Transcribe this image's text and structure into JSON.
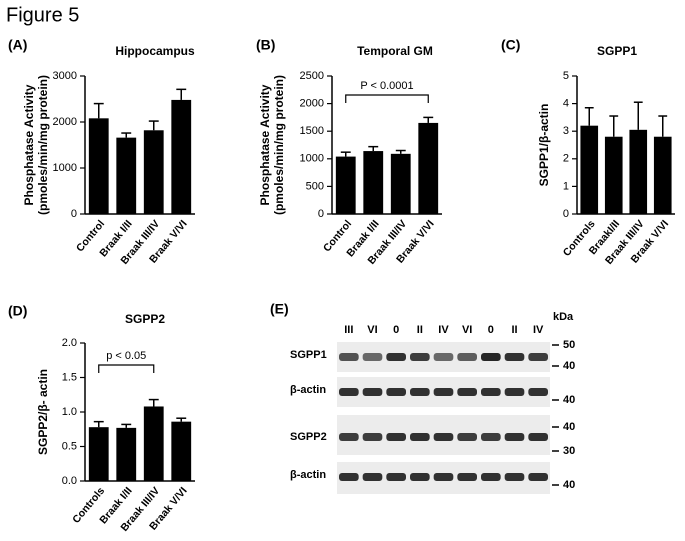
{
  "title": "Figure 5",
  "chart_data": [
    {
      "type": "bar",
      "panel": "(A)",
      "title": "Hippocampus",
      "ylabel": [
        "Phosphatase Activity",
        "(pmoles/min/mg protein)"
      ],
      "categories": [
        "Control",
        "Braak I/II",
        "Braak III/IV",
        "Braak V/VI"
      ],
      "values": [
        2080,
        1660,
        1820,
        2480
      ],
      "errors": [
        320,
        100,
        200,
        230
      ],
      "color": "#000000",
      "ylim": [
        0,
        3000
      ],
      "yticks": [
        0,
        1000,
        2000,
        3000
      ]
    },
    {
      "type": "bar",
      "panel": "(B)",
      "title": "Temporal GM",
      "ylabel": [
        "Phosphatase Activity",
        "(pmoles/min/mg protein)"
      ],
      "categories": [
        "Control",
        "Braak I/II",
        "Braak III/IV",
        "Braak V/VI"
      ],
      "values": [
        1040,
        1140,
        1090,
        1650
      ],
      "errors": [
        80,
        80,
        60,
        100
      ],
      "color": "#000000",
      "ylim": [
        0,
        2500
      ],
      "yticks": [
        0,
        500,
        1000,
        1500,
        2000,
        2500
      ],
      "annotation": "P < 0.0001"
    },
    {
      "type": "bar",
      "panel": "(C)",
      "title": "SGPP1",
      "ylabel": [
        "SGPP1/β-actin"
      ],
      "categories": [
        "Controls",
        "BraakI/II",
        "Braak III/IV",
        "Braak V/VI"
      ],
      "values": [
        3.2,
        2.8,
        3.05,
        2.8
      ],
      "errors": [
        0.65,
        0.75,
        1.0,
        0.75
      ],
      "color": "#000000",
      "ylim": [
        0,
        5
      ],
      "yticks": [
        0,
        1,
        2,
        3,
        4,
        5
      ]
    },
    {
      "type": "bar",
      "panel": "(D)",
      "title": "SGPP2",
      "ylabel": [
        "SGPP2/β- actin"
      ],
      "categories": [
        "Controls",
        "Braak I/II",
        "Braak III/IV",
        "Braak V/VI"
      ],
      "values": [
        0.78,
        0.77,
        1.08,
        0.86
      ],
      "errors": [
        0.08,
        0.05,
        0.1,
        0.05
      ],
      "color": "#000000",
      "ylim": [
        0,
        2
      ],
      "yticks": [
        {
          "value": 0,
          "label": "0.0"
        },
        {
          "value": 0.5,
          "label": "0.5"
        },
        {
          "value": 1,
          "label": "1.0"
        },
        {
          "value": 1.5,
          "label": "1.5"
        },
        {
          "value": 2,
          "label": "2.0"
        }
      ],
      "annotation": "p < 0.05"
    }
  ],
  "blot": {
    "panel": "(E)",
    "lanes": [
      "III",
      "VI",
      "0",
      "II",
      "IV",
      "VI",
      "0",
      "II",
      "IV"
    ],
    "unit": "kDa",
    "rows": [
      {
        "label": "SGPP1",
        "markers": [
          50,
          40
        ]
      },
      {
        "label": "β-actin",
        "markers": [
          40
        ]
      },
      {
        "label": "SGPP2",
        "markers": [
          40,
          30
        ]
      },
      {
        "label": "β-actin",
        "markers": [
          40
        ]
      }
    ]
  }
}
